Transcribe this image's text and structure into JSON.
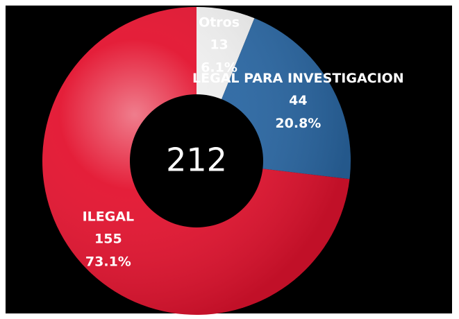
{
  "chart_data": {
    "type": "pie",
    "categories": [
      "Otros",
      "LEGAL PARA INVESTIGACION",
      "ILEGAL"
    ],
    "values": [
      13,
      44,
      155
    ],
    "value_labels": [
      "6.1%",
      "20.8%",
      "73.1%"
    ],
    "colors": [
      "#eeeeee",
      "#2a67a3",
      "#e3132f"
    ],
    "total": 212
  }
}
